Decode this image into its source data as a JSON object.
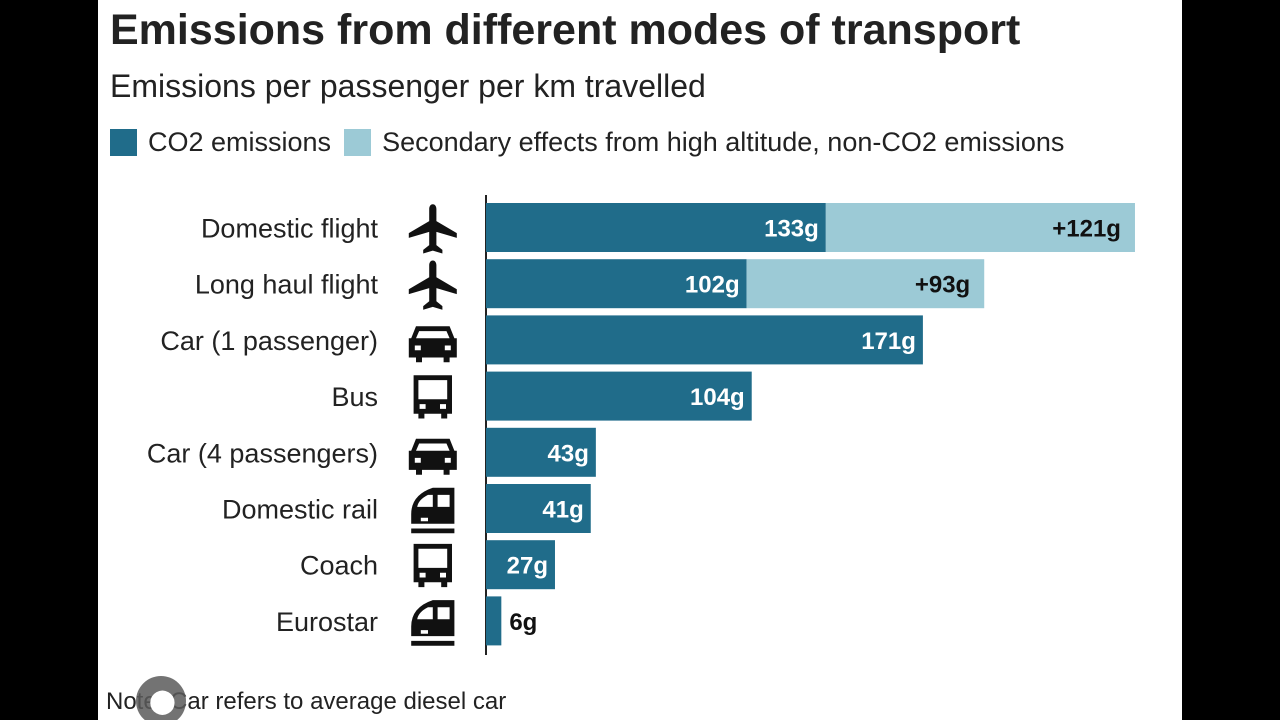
{
  "chart_data": {
    "type": "bar",
    "orientation": "horizontal",
    "stacked": true,
    "title": "Emissions from different modes of transport",
    "subtitle": "Emissions per passenger per km travelled",
    "categories": [
      "Domestic flight",
      "Long haul flight",
      "Car (1 passenger)",
      "Bus",
      "Car (4 passengers)",
      "Domestic rail",
      "Coach",
      "Eurostar"
    ],
    "icons": [
      "plane-icon",
      "plane-icon",
      "car-icon",
      "bus-icon",
      "car-icon",
      "train-icon",
      "bus-icon",
      "train-icon"
    ],
    "series": [
      {
        "name": "CO2 emissions",
        "color": "#206c8a",
        "values": [
          133,
          102,
          171,
          104,
          43,
          41,
          27,
          6
        ],
        "labels": [
          "133g",
          "102g",
          "171g",
          "104g",
          "43g",
          "41g",
          "27g",
          "6g"
        ]
      },
      {
        "name": "Secondary effects from high altitude, non-CO2 emissions",
        "color": "#9ccad6",
        "values": [
          121,
          93,
          0,
          0,
          0,
          0,
          0,
          0
        ],
        "labels": [
          "+121g",
          "+93g",
          "",
          "",
          "",
          "",
          "",
          ""
        ]
      }
    ],
    "xlim": [
      0,
      260
    ],
    "grid": false,
    "legend_position": "top"
  },
  "note": "Note: Car refers to average diesel car"
}
